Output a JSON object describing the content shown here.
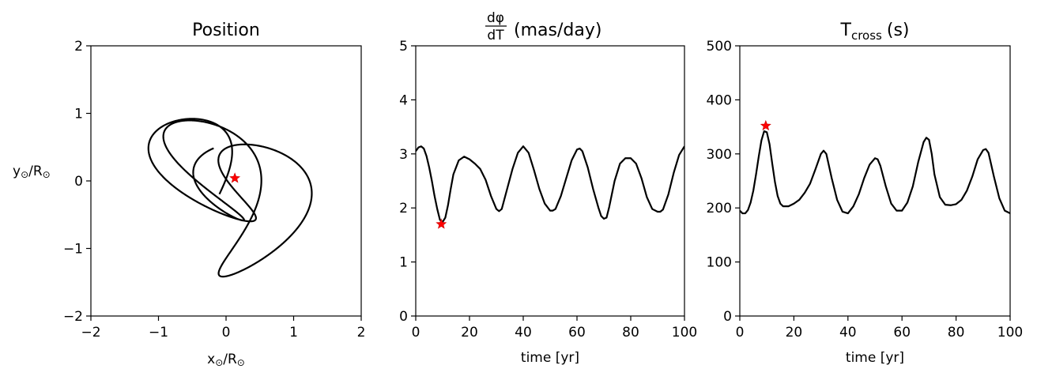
{
  "chart_data": [
    {
      "type": "line",
      "title": "Position",
      "xlabel_sym": "x",
      "xlabel_sub": "⊙",
      "xlabel_mid": "/R",
      "ylabel_sym": "y",
      "ylabel_sub": "⊙",
      "ylabel_mid": "/R",
      "xlim": [
        -2,
        2
      ],
      "ylim": [
        -2,
        2
      ],
      "xticks": [
        -2,
        -1,
        0,
        1,
        2
      ],
      "yticks": [
        -2,
        -1,
        0,
        1,
        2
      ],
      "xtick_labels": [
        "−2",
        "−1",
        "0",
        "1",
        "2"
      ],
      "ytick_labels": [
        "−2",
        "−1",
        "0",
        "1",
        "2"
      ],
      "series": [
        {
          "orbit": {
            "a": 1.1,
            "b": 0.85,
            "omega": 0.55,
            "cx": 0.1,
            "cy": -0.15,
            "phi0": 2.3,
            "t_end": 19.6,
            "steps": 2600
          }
        }
      ],
      "marker": {
        "x": 0.13,
        "y": 0.04,
        "color": "#ff0000"
      }
    },
    {
      "type": "line",
      "title_num": "dφ",
      "title_den": "dT",
      "title_unit": "(mas/day)",
      "xlabel": "time [yr]",
      "xlim": [
        0,
        100
      ],
      "ylim": [
        0,
        5
      ],
      "xticks": [
        0,
        20,
        40,
        60,
        80,
        100
      ],
      "yticks": [
        0,
        1,
        2,
        3,
        4,
        5
      ],
      "series": [
        {
          "x": [
            0,
            1,
            2,
            3,
            4,
            5,
            6,
            7,
            8,
            9,
            10,
            11,
            12,
            13,
            14,
            16,
            18,
            20,
            22,
            24,
            26,
            28,
            30,
            31,
            32,
            34,
            36,
            38,
            40,
            42,
            44,
            46,
            48,
            50,
            51,
            52,
            54,
            56,
            58,
            60,
            61,
            62,
            64,
            66,
            68,
            69,
            70,
            71,
            72,
            74,
            76,
            78,
            80,
            82,
            84,
            86,
            88,
            90,
            91,
            92,
            94,
            96,
            98,
            100
          ],
          "y": [
            3.05,
            3.12,
            3.14,
            3.1,
            2.96,
            2.75,
            2.5,
            2.22,
            1.98,
            1.78,
            1.74,
            1.82,
            2.05,
            2.35,
            2.62,
            2.88,
            2.95,
            2.9,
            2.82,
            2.72,
            2.52,
            2.22,
            1.98,
            1.94,
            1.98,
            2.35,
            2.72,
            3.02,
            3.14,
            3.02,
            2.7,
            2.35,
            2.08,
            1.95,
            1.95,
            1.98,
            2.22,
            2.55,
            2.88,
            3.08,
            3.1,
            3.05,
            2.75,
            2.35,
            2.0,
            1.85,
            1.8,
            1.82,
            2.02,
            2.5,
            2.82,
            2.92,
            2.92,
            2.82,
            2.55,
            2.2,
            1.98,
            1.93,
            1.93,
            1.97,
            2.25,
            2.65,
            2.98,
            3.14
          ]
        }
      ],
      "marker": {
        "x": 9.5,
        "y": 1.7,
        "color": "#ff0000"
      }
    },
    {
      "type": "line",
      "title_main": "T",
      "title_sub": "cross",
      "title_unit": "(s)",
      "xlabel": "time [yr]",
      "xlim": [
        0,
        100
      ],
      "ylim": [
        0,
        500
      ],
      "xticks": [
        0,
        20,
        40,
        60,
        80,
        100
      ],
      "yticks": [
        0,
        100,
        200,
        300,
        400,
        500
      ],
      "series": [
        {
          "x": [
            0,
            1,
            2,
            3,
            4,
            5,
            6,
            7,
            8,
            9,
            10,
            11,
            12,
            13,
            14,
            15,
            16,
            18,
            20,
            22,
            24,
            26,
            28,
            30,
            31,
            32,
            34,
            36,
            38,
            40,
            42,
            44,
            46,
            48,
            50,
            51,
            52,
            54,
            56,
            58,
            60,
            62,
            64,
            66,
            68,
            69,
            70,
            71,
            72,
            74,
            76,
            78,
            80,
            82,
            84,
            86,
            88,
            90,
            91,
            92,
            94,
            96,
            98,
            100
          ],
          "y": [
            195,
            190,
            190,
            196,
            210,
            232,
            262,
            295,
            325,
            342,
            340,
            318,
            282,
            248,
            222,
            208,
            203,
            203,
            208,
            215,
            228,
            245,
            272,
            300,
            306,
            300,
            255,
            215,
            193,
            190,
            203,
            225,
            255,
            280,
            292,
            290,
            278,
            240,
            208,
            195,
            195,
            210,
            240,
            285,
            322,
            330,
            326,
            300,
            262,
            220,
            206,
            205,
            207,
            215,
            232,
            258,
            290,
            307,
            309,
            302,
            258,
            218,
            195,
            190
          ]
        }
      ],
      "marker": {
        "x": 9.6,
        "y": 352,
        "color": "#ff0000"
      }
    }
  ]
}
